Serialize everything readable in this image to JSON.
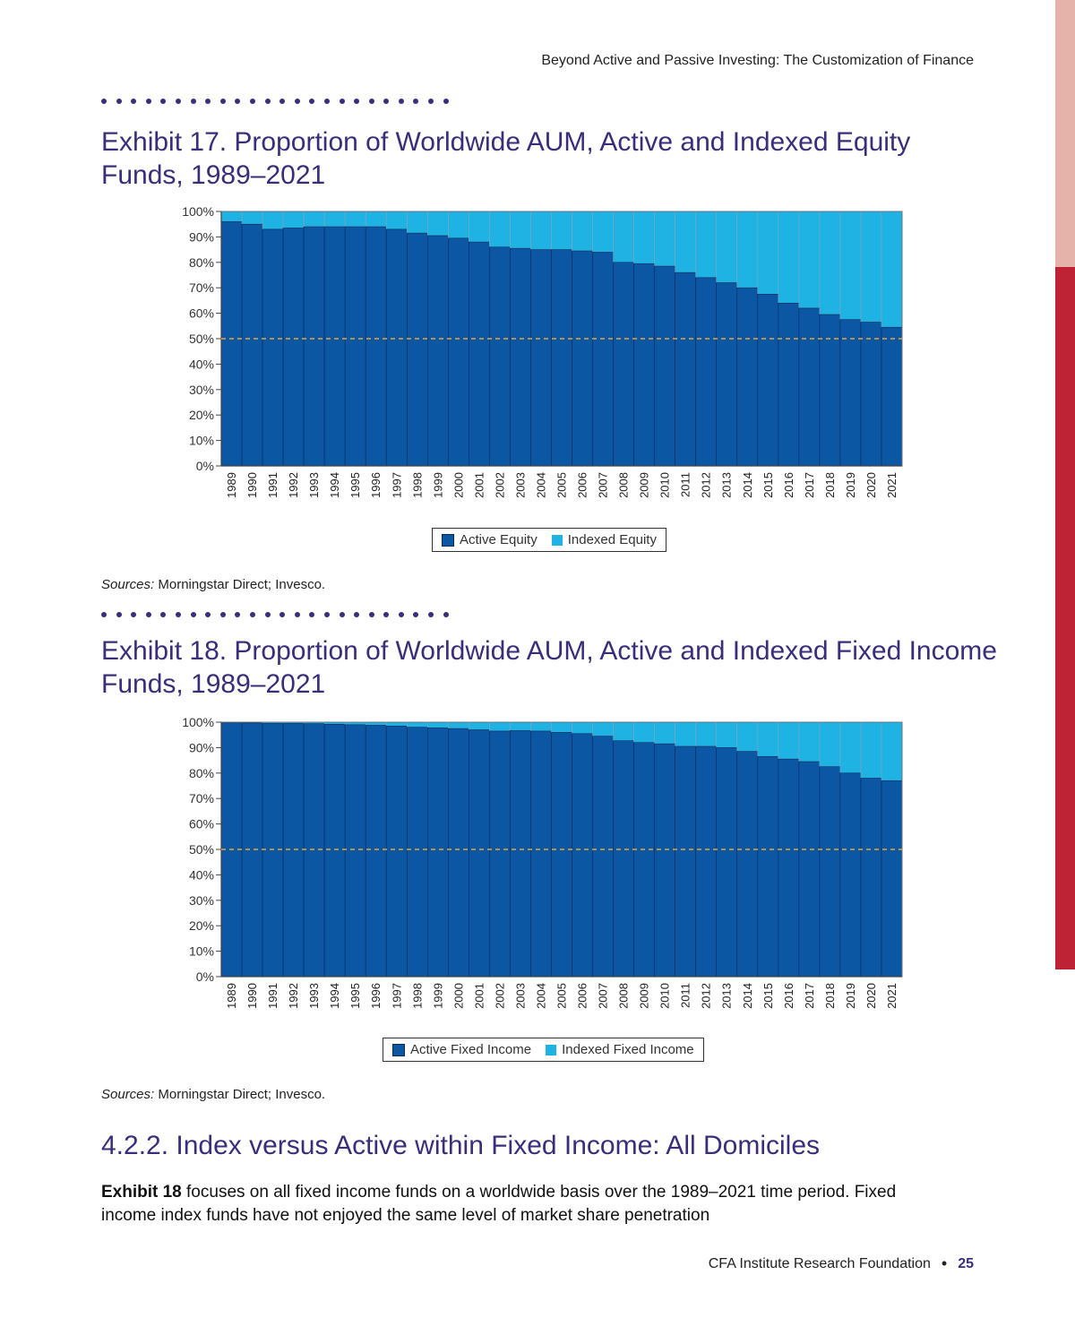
{
  "header": {
    "running_title": "Beyond Active and Passive Investing: The Customization of Finance"
  },
  "exhibit17": {
    "title": "Exhibit 17. Proportion of Worldwide AUM, Active and Indexed Equity Funds, 1989–2021",
    "source_label": "Sources:",
    "source_text": " Morningstar Direct; Invesco."
  },
  "exhibit18": {
    "title": "Exhibit 18. Proportion of Worldwide AUM, Active and Indexed Fixed Income Funds, 1989–2021",
    "source_label": "Sources:",
    "source_text": " Morningstar Direct; Invesco."
  },
  "section": {
    "heading": "4.2.2. Index versus Active within Fixed Income: All Domiciles"
  },
  "body": {
    "bold": "Exhibit 18",
    "text": " focuses on all fixed income funds on a worldwide basis over the 1989–2021 time period. Fixed income index funds have not enjoyed the same level of market share penetration"
  },
  "footer": {
    "org": "CFA Institute Research Foundation",
    "bullet": "•",
    "page": "25"
  },
  "colors": {
    "active": "#0b57a4",
    "indexed": "#1eb3e3",
    "reference": "#e3a93a",
    "title": "#3b2d7a"
  },
  "chart_data": [
    {
      "type": "bar",
      "stacked": true,
      "categories": [
        "1989",
        "1990",
        "1991",
        "1992",
        "1993",
        "1994",
        "1995",
        "1996",
        "1997",
        "1998",
        "1999",
        "2000",
        "2001",
        "2002",
        "2003",
        "2004",
        "2005",
        "2006",
        "2007",
        "2008",
        "2009",
        "2010",
        "2011",
        "2012",
        "2013",
        "2014",
        "2015",
        "2016",
        "2017",
        "2018",
        "2019",
        "2020",
        "2021"
      ],
      "series": [
        {
          "name": "Active Equity",
          "values": [
            96,
            95,
            93,
            93.5,
            94,
            94,
            94,
            94,
            93,
            91.5,
            90.5,
            89.5,
            88,
            86,
            85.5,
            85,
            85,
            84.5,
            84,
            80,
            79.5,
            78.5,
            76,
            74,
            72,
            70,
            67.5,
            64,
            62,
            59.5,
            57.5,
            56.5,
            54.5
          ]
        },
        {
          "name": "Indexed Equity",
          "values": [
            4,
            5,
            7,
            6.5,
            6,
            6,
            6,
            6,
            7,
            8.5,
            9.5,
            10.5,
            12,
            14,
            14.5,
            15,
            15,
            15.5,
            16,
            20,
            20.5,
            21.5,
            24,
            26,
            28,
            30,
            32.5,
            36,
            38,
            40.5,
            42.5,
            43.5,
            45.5
          ]
        }
      ],
      "yticks": [
        "0%",
        "10%",
        "20%",
        "30%",
        "40%",
        "50%",
        "60%",
        "70%",
        "80%",
        "90%",
        "100%"
      ],
      "ylim": [
        0,
        100
      ],
      "reference_line": 50,
      "legend_position": "bottom"
    },
    {
      "type": "bar",
      "stacked": true,
      "categories": [
        "1989",
        "1990",
        "1991",
        "1992",
        "1993",
        "1994",
        "1995",
        "1996",
        "1997",
        "1998",
        "1999",
        "2000",
        "2001",
        "2002",
        "2003",
        "2004",
        "2005",
        "2006",
        "2007",
        "2008",
        "2009",
        "2010",
        "2011",
        "2012",
        "2013",
        "2014",
        "2015",
        "2016",
        "2017",
        "2018",
        "2019",
        "2020",
        "2021"
      ],
      "series": [
        {
          "name": "Active Fixed Income",
          "values": [
            99.8,
            99.7,
            99.5,
            99.5,
            99.4,
            99.2,
            99,
            98.8,
            98.5,
            98,
            97.8,
            97.5,
            97,
            96.5,
            96.7,
            96.5,
            96,
            95.5,
            94.5,
            92.7,
            92,
            91.5,
            90.5,
            90.5,
            90,
            88.5,
            86.5,
            85.5,
            84.5,
            82.5,
            80,
            78,
            77
          ]
        },
        {
          "name": "Indexed Fixed Income",
          "values": [
            0.2,
            0.3,
            0.5,
            0.5,
            0.6,
            0.8,
            1,
            1.2,
            1.5,
            2,
            2.2,
            2.5,
            3,
            3.5,
            3.3,
            3.5,
            4,
            4.5,
            5.5,
            7.3,
            8,
            8.5,
            9.5,
            9.5,
            10,
            11.5,
            13.5,
            14.5,
            15.5,
            17.5,
            20,
            22,
            23
          ]
        }
      ],
      "yticks": [
        "0%",
        "10%",
        "20%",
        "30%",
        "40%",
        "50%",
        "60%",
        "70%",
        "80%",
        "90%",
        "100%"
      ],
      "ylim": [
        0,
        100
      ],
      "reference_line": 50,
      "legend_position": "bottom"
    }
  ]
}
